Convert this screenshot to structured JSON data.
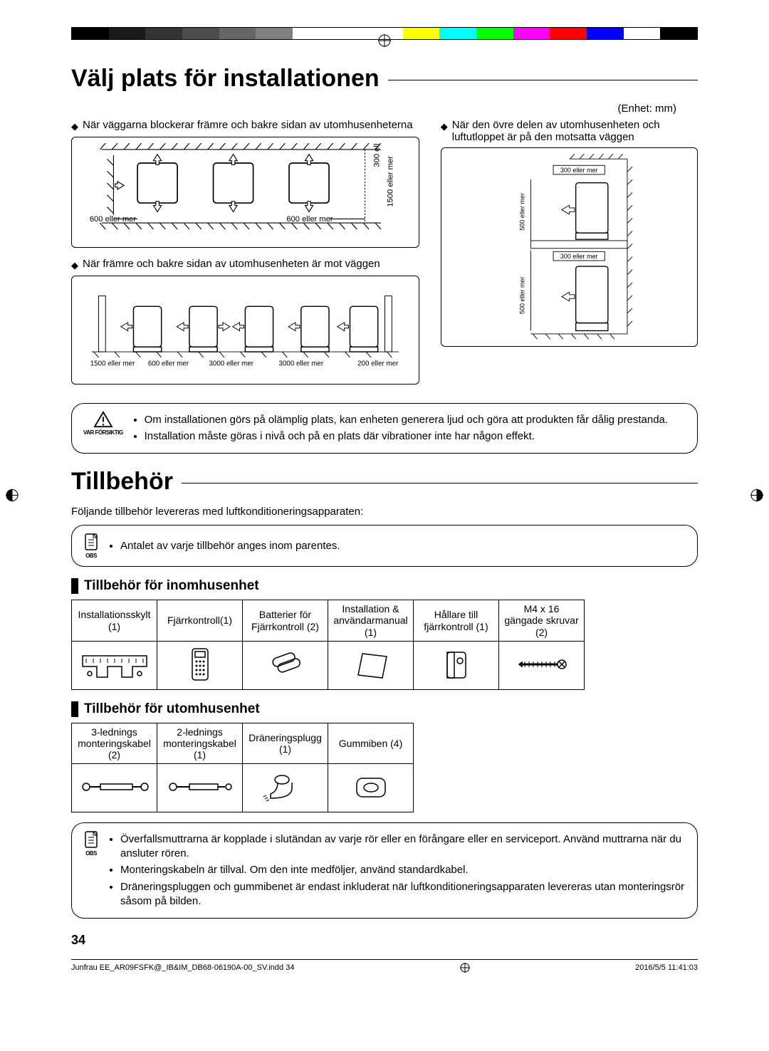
{
  "colorbar": [
    "#000000",
    "#1a1a1a",
    "#333333",
    "#4d4d4d",
    "#666666",
    "#808080",
    "#ffffff",
    "#ffffff",
    "#ffffff",
    "#ffff00",
    "#00ffff",
    "#00ff00",
    "#ff00ff",
    "#ff0000",
    "#0000ff",
    "#ffffff",
    "#000000"
  ],
  "heading1": "Välj plats för installationen",
  "unit": "(Enhet: mm)",
  "sec1": {
    "bullet1": "När väggarna blockerar främre och bakre sidan av utomhusenheterna",
    "bullet2": "När främre och bakre sidan av utomhusenheten är mot väggen",
    "bullet3": "När den övre delen av utomhusenheten och luftutloppet är på den motsatta väggen",
    "d1": {
      "l600a": "600 eller mer",
      "l600b": "600 eller mer",
      "l300": "300 eller mer",
      "l1500": "1500 eller mer"
    },
    "d2": {
      "l1500": "1500 eller mer",
      "l600": "600 eller mer",
      "l3000a": "3000 eller mer",
      "l3000b": "3000 eller mer",
      "l200": "200 eller mer"
    },
    "d3": {
      "l300a": "300 eller mer",
      "l300b": "300 eller mer",
      "l500a": "500 eller mer",
      "l500b": "500 eller mer"
    }
  },
  "warn1": {
    "label": "VAR FÖRSIKTIG",
    "items": [
      "Om installationen görs på olämplig plats, kan enheten generera ljud och göra att produkten får dålig prestanda.",
      "Installation måste göras i nivå och på en plats där vibrationer inte har någon effekt."
    ]
  },
  "heading2": "Tillbehör",
  "intro2": "Följande tillbehör levereras med luftkonditioneringsapparaten:",
  "note1": {
    "label": "OBS",
    "items": [
      "Antalet av varje tillbehör anges inom parentes."
    ]
  },
  "sub_indoor": "Tillbehör för inomhusenhet",
  "indoor": [
    {
      "label": "Installationsskylt (1)"
    },
    {
      "label": "Fjärrkontroll(1)"
    },
    {
      "label": "Batterier för Fjärrkontroll (2)"
    },
    {
      "label": "Installation & användarmanual (1)"
    },
    {
      "label": "Hållare till fjärrkontroll (1)"
    },
    {
      "label": "M4 x 16 gängade skruvar (2)"
    }
  ],
  "sub_outdoor": "Tillbehör för utomhusenhet",
  "outdoor": [
    {
      "label": "3-lednings monteringskabel (2)"
    },
    {
      "label": "2-lednings monteringskabel (1)"
    },
    {
      "label": "Dräneringsplugg (1)"
    },
    {
      "label": "Gummiben (4)"
    }
  ],
  "note2": {
    "label": "OBS",
    "items": [
      "Överfallsmuttrarna  är kopplade i  slutändan  av varje rör eller en förångare eller en serviceport. Använd muttrarna när du ansluter rören.",
      "Monteringskabeln är tillval. Om den inte medföljer, använd standardkabel.",
      "Dräneringspluggen och gummibenet är endast inkluderat när luftkonditioneringsapparaten  levereras utan monteringsrör såsom på bilden."
    ]
  },
  "pagenum": "34",
  "footer": {
    "file": "Junfrau EE_AR09FSFK@_IB&IM_DB68-06190A-00_SV.indd   34",
    "date": "2016/5/5   11:41:03"
  }
}
